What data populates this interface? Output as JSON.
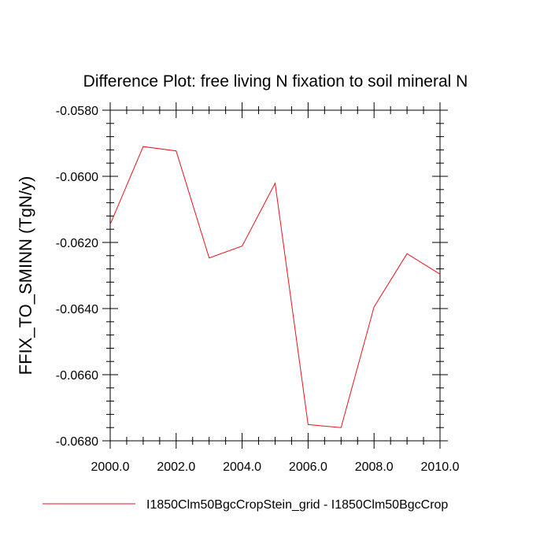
{
  "chart_data": {
    "type": "line",
    "title": "Difference Plot: free living N fixation to soil mineral N",
    "xlabel": "",
    "ylabel": "FFIX_TO_SMINN  (TgN/y)",
    "xlim": [
      2000.0,
      2010.0
    ],
    "ylim": [
      -0.068,
      -0.058
    ],
    "xticks": [
      2000.0,
      2002.0,
      2004.0,
      2006.0,
      2008.0,
      2010.0
    ],
    "xtick_labels": [
      "2000.0",
      "2002.0",
      "2004.0",
      "2006.0",
      "2008.0",
      "2010.0"
    ],
    "yticks": [
      -0.058,
      -0.06,
      -0.062,
      -0.064,
      -0.066,
      -0.068
    ],
    "ytick_labels": [
      "-0.0580",
      "-0.0600",
      "-0.0620",
      "-0.0640",
      "-0.0660",
      "-0.0680"
    ],
    "grid": false,
    "legend_position": "bottom",
    "series": [
      {
        "name": "I1850Clm50BgcCropStein_grid - I1850Clm50BgcCrop",
        "color": "#e8121c",
        "x": [
          2000,
          2001,
          2002,
          2003,
          2004,
          2005,
          2006,
          2007,
          2008,
          2009,
          2010
        ],
        "y": [
          -0.06145,
          -0.0591,
          -0.05923,
          -0.06247,
          -0.06211,
          -0.06021,
          -0.06751,
          -0.0676,
          -0.06395,
          -0.06234,
          -0.06296
        ]
      }
    ]
  }
}
